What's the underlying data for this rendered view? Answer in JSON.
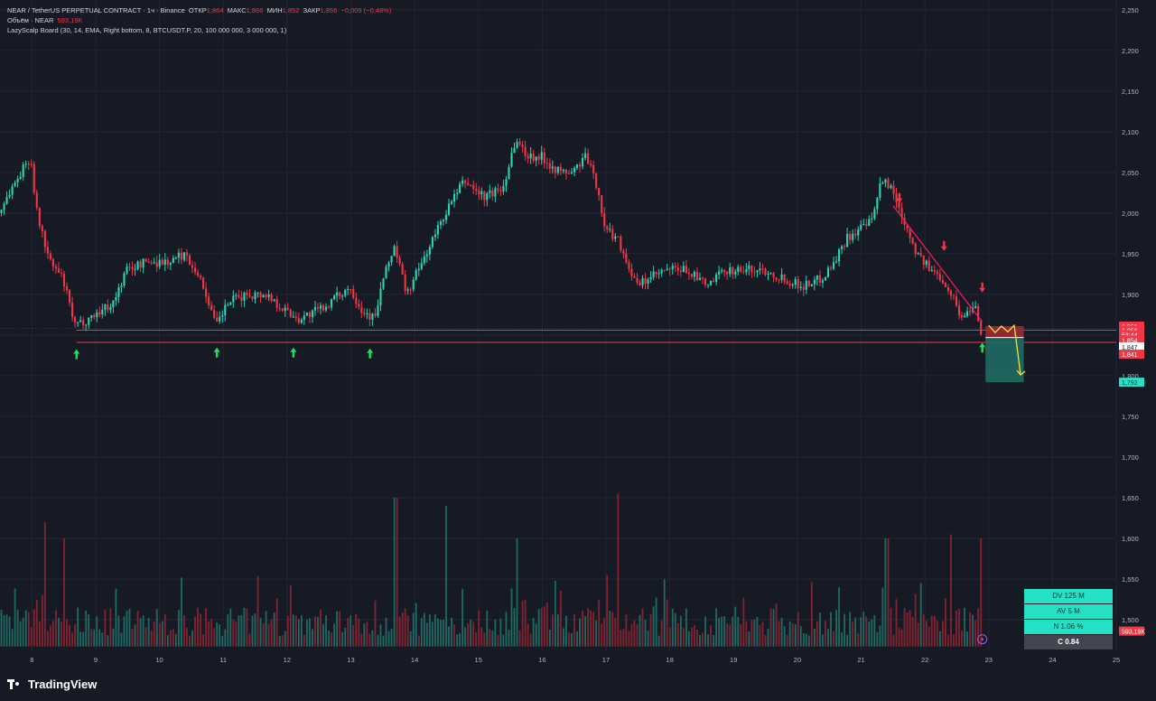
{
  "legend": {
    "line1_title": "NEAR / TetherUS PERPETUAL CONTRACT · 1ч · Binance",
    "open_label": "ОТКР",
    "open": "1,864",
    "high_label": "МАКС",
    "high": "1,866",
    "low_label": "МИН",
    "low": "1,852",
    "close_label": "ЗАКР",
    "close": "1,856",
    "change": "−0,009 (−0,48%)",
    "line2_label": "Объём · NEAR",
    "volume": "593,19К",
    "line3": "LazyScalp Board (30, 14, EMA, Right bottom, 8, BTCUSDT.P, 20, 100 000 000, 3 000 000, 1)"
  },
  "board": {
    "dv": "DV 125 M",
    "av": "AV 5 M",
    "n": "N 1.06 %",
    "c": "C  0.84"
  },
  "brand": "TradingView",
  "chart_data": {
    "type": "candlestick",
    "timeframe": "1h",
    "y_range": [
      1.46,
      2.262
    ],
    "x_range": [
      7.5,
      25
    ],
    "y_ticks": [
      "2,250",
      "2,200",
      "2,150",
      "2,100",
      "2,050",
      "2,000",
      "1,950",
      "1,900",
      "1,850",
      "1,800",
      "1,750",
      "1,700",
      "1,650",
      "1,600",
      "1,550",
      "1,500"
    ],
    "x_ticks": [
      "8",
      "9",
      "10",
      "11",
      "12",
      "13",
      "14",
      "15",
      "16",
      "17",
      "18",
      "19",
      "20",
      "21",
      "22",
      "23",
      "24",
      "25"
    ],
    "price_path": [
      [
        7.5,
        2.0
      ],
      [
        7.7,
        2.03
      ],
      [
        8.0,
        2.07
      ],
      [
        8.1,
        2.0
      ],
      [
        8.3,
        1.94
      ],
      [
        8.5,
        1.92
      ],
      [
        8.7,
        1.86
      ],
      [
        8.9,
        1.87
      ],
      [
        9.1,
        1.88
      ],
      [
        9.3,
        1.89
      ],
      [
        9.5,
        1.93
      ],
      [
        9.8,
        1.94
      ],
      [
        10.2,
        1.94
      ],
      [
        10.4,
        1.95
      ],
      [
        10.6,
        1.93
      ],
      [
        10.8,
        1.89
      ],
      [
        10.9,
        1.86
      ],
      [
        11.1,
        1.89
      ],
      [
        11.4,
        1.9
      ],
      [
        11.7,
        1.9
      ],
      [
        12.0,
        1.88
      ],
      [
        12.2,
        1.87
      ],
      [
        12.5,
        1.88
      ],
      [
        12.7,
        1.89
      ],
      [
        13.0,
        1.91
      ],
      [
        13.2,
        1.88
      ],
      [
        13.4,
        1.87
      ],
      [
        13.5,
        1.91
      ],
      [
        13.7,
        1.96
      ],
      [
        13.9,
        1.9
      ],
      [
        14.2,
        1.95
      ],
      [
        14.5,
        2.0
      ],
      [
        14.8,
        2.04
      ],
      [
        15.1,
        2.02
      ],
      [
        15.4,
        2.03
      ],
      [
        15.6,
        2.09
      ],
      [
        15.8,
        2.07
      ],
      [
        16.0,
        2.07
      ],
      [
        16.3,
        2.05
      ],
      [
        16.5,
        2.05
      ],
      [
        16.7,
        2.07
      ],
      [
        16.9,
        2.03
      ],
      [
        17.0,
        1.98
      ],
      [
        17.2,
        1.97
      ],
      [
        17.4,
        1.93
      ],
      [
        17.5,
        1.91
      ],
      [
        17.7,
        1.92
      ],
      [
        18.0,
        1.93
      ],
      [
        18.3,
        1.93
      ],
      [
        18.6,
        1.91
      ],
      [
        18.9,
        1.93
      ],
      [
        19.2,
        1.93
      ],
      [
        19.5,
        1.93
      ],
      [
        19.8,
        1.92
      ],
      [
        20.1,
        1.91
      ],
      [
        20.4,
        1.92
      ],
      [
        20.6,
        1.94
      ],
      [
        20.8,
        1.97
      ],
      [
        21.0,
        1.98
      ],
      [
        21.2,
        1.99
      ],
      [
        21.3,
        2.03
      ],
      [
        21.4,
        2.04
      ],
      [
        21.5,
        2.03
      ],
      [
        21.7,
        1.99
      ],
      [
        21.9,
        1.95
      ],
      [
        22.1,
        1.93
      ],
      [
        22.3,
        1.92
      ],
      [
        22.5,
        1.89
      ],
      [
        22.6,
        1.87
      ],
      [
        22.8,
        1.89
      ],
      [
        22.9,
        1.856
      ]
    ],
    "volume_peaks": [
      {
        "x": 8.2,
        "v": 1.62
      },
      {
        "x": 8.5,
        "v": 1.6
      },
      {
        "x": 13.7,
        "v": 1.65
      },
      {
        "x": 14.5,
        "v": 1.64
      },
      {
        "x": 15.6,
        "v": 1.6
      },
      {
        "x": 17.2,
        "v": 1.655
      },
      {
        "x": 21.4,
        "v": 1.6
      },
      {
        "x": 22.4,
        "v": 1.605
      },
      {
        "x": 22.9,
        "v": 1.6
      }
    ],
    "levels": [
      {
        "price": 1.856,
        "color": "#f23645"
      },
      {
        "price": 1.841,
        "color": "#f23645"
      }
    ],
    "trendline": [
      [
        21.5,
        2.009
      ],
      [
        22.9,
        1.866
      ]
    ],
    "up_arrows": [
      [
        8.7,
        1.827
      ],
      [
        10.9,
        1.829
      ],
      [
        12.1,
        1.829
      ],
      [
        13.3,
        1.828
      ],
      [
        22.9,
        1.835
      ]
    ],
    "down_arrows": [
      [
        21.6,
        2.018
      ],
      [
        22.3,
        1.959
      ],
      [
        22.9,
        1.908
      ]
    ],
    "projection": [
      [
        23.0,
        1.862
      ],
      [
        23.1,
        1.853
      ],
      [
        23.2,
        1.861
      ],
      [
        23.3,
        1.854
      ],
      [
        23.4,
        1.862
      ],
      [
        23.5,
        1.801
      ]
    ],
    "position": {
      "x0": 22.95,
      "x1": 23.55,
      "entry": 1.847,
      "stop": 1.861,
      "target": 1.792,
      "stop_color": "#9c2a37",
      "target_color": "#1e6b62"
    },
    "price_tags": [
      {
        "label": "1,861",
        "price": 1.861,
        "bg": "#f23645",
        "fg": "#ffffff"
      },
      {
        "label": "1,856",
        "price": 1.856,
        "bg": "#f23645",
        "fg": "#ffffff"
      },
      {
        "label": "53:44",
        "price": 1.8505,
        "bg": "#f23645",
        "fg": "#ffffff"
      },
      {
        "label": "1,854",
        "price": 1.844,
        "bg": "#f23645",
        "fg": "#ffffff"
      },
      {
        "label": "1,847",
        "price": 1.8355,
        "bg": "#ffffff",
        "fg": "#131722"
      },
      {
        "label": "1,841",
        "price": 1.8265,
        "bg": "#f23645",
        "fg": "#ffffff"
      },
      {
        "label": "1,792",
        "price": 1.792,
        "bg": "#26e0c6",
        "fg": "#0d3b34"
      },
      {
        "label": "593,19K",
        "price": 1.486,
        "bg": "#f23645",
        "fg": "#ffffff"
      }
    ],
    "colors": {
      "up": "#26a69a",
      "down": "#f23645",
      "up_bright": "#2bd4b4",
      "grid": "#232632",
      "text": "#b2b5be"
    }
  }
}
